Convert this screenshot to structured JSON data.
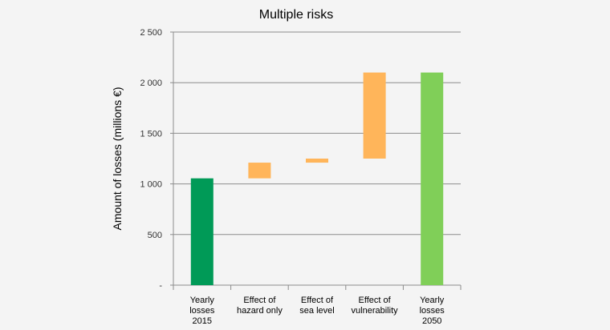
{
  "chart_data": {
    "type": "bar",
    "subtype": "waterfall",
    "title": "Multiple risks",
    "xlabel": "",
    "ylabel": "Amount  of  losses (millions €)",
    "ylim": [
      0,
      2500
    ],
    "yticks": [
      {
        "value": 2500,
        "label": "2 500"
      },
      {
        "value": 2000,
        "label": "2 000"
      },
      {
        "value": 1500,
        "label": "1 500"
      },
      {
        "value": 1000,
        "label": "1 000"
      },
      {
        "value": 500,
        "label": "500"
      },
      {
        "value": 0,
        "label": "-"
      }
    ],
    "grid": true,
    "categories": [
      [
        "Yearly",
        "losses",
        "2015"
      ],
      [
        "Effect of",
        "hazard only"
      ],
      [
        "Effect of",
        "sea level"
      ],
      [
        "Effect of",
        "vulnerability"
      ],
      [
        "Yearly",
        "losses",
        "2050"
      ]
    ],
    "bars": [
      {
        "start": 0,
        "end": 1055,
        "color": "#009a57"
      },
      {
        "start": 1055,
        "end": 1210,
        "color": "#ffb55a"
      },
      {
        "start": 1210,
        "end": 1250,
        "color": "#ffb55a"
      },
      {
        "start": 1250,
        "end": 2100,
        "color": "#ffb55a"
      },
      {
        "start": 0,
        "end": 2100,
        "color": "#80cf58"
      }
    ]
  }
}
